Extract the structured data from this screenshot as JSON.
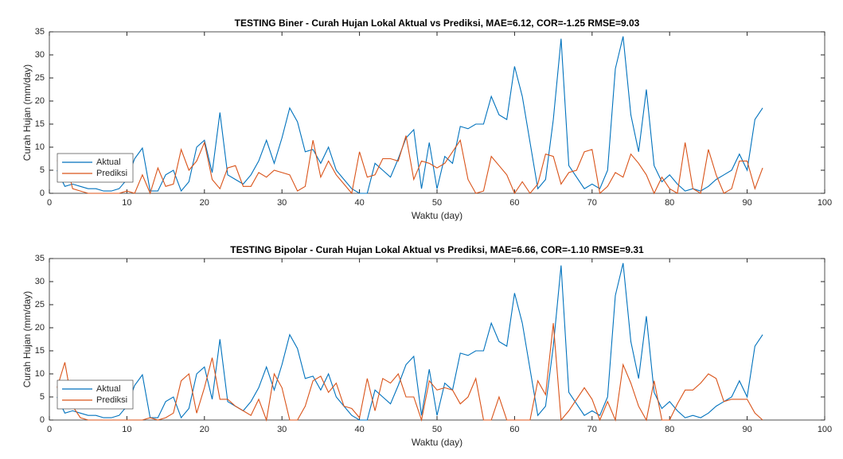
{
  "chart_data": [
    {
      "type": "line",
      "title": "TESTING Biner - Curah Hujan Lokal Aktual vs Prediksi, MAE=6.12, COR=-1.25 RMSE=9.03",
      "xlabel": "Waktu (day)",
      "ylabel": "Curah Hujan (mm/day)",
      "xlim": [
        0,
        100
      ],
      "xticks": [
        0,
        10,
        20,
        30,
        40,
        50,
        60,
        70,
        80,
        90,
        100
      ],
      "ylim": [
        0,
        35
      ],
      "yticks": [
        0,
        5,
        10,
        15,
        20,
        25,
        30,
        35
      ],
      "legend": "lower left",
      "x": [
        1,
        2,
        3,
        4,
        5,
        6,
        7,
        8,
        9,
        10,
        11,
        12,
        13,
        14,
        15,
        16,
        17,
        18,
        19,
        20,
        21,
        22,
        23,
        24,
        25,
        26,
        27,
        28,
        29,
        30,
        31,
        32,
        33,
        34,
        35,
        36,
        37,
        38,
        39,
        40,
        41,
        42,
        43,
        44,
        45,
        46,
        47,
        48,
        49,
        50,
        51,
        52,
        53,
        54,
        55,
        56,
        57,
        58,
        59,
        60,
        61,
        62,
        63,
        64,
        65,
        66,
        67,
        68,
        69,
        70,
        71,
        72,
        73,
        74,
        75,
        76,
        77,
        78,
        79,
        80,
        81,
        82,
        83,
        84,
        85,
        86,
        87,
        88,
        89,
        90,
        91,
        92
      ],
      "series": [
        {
          "name": "Aktual",
          "color": "#0072BD",
          "values": [
            5,
            1.5,
            2,
            1.5,
            1,
            1,
            0.5,
            0.5,
            1,
            3,
            7.5,
            9.8,
            0.5,
            0.5,
            4,
            5,
            0.5,
            2.5,
            10,
            11.5,
            4.5,
            17.5,
            4,
            3,
            2,
            4,
            7,
            11.5,
            6.5,
            12,
            18.5,
            15.5,
            9,
            9.5,
            6.5,
            10,
            5,
            3,
            1,
            0,
            0,
            6.5,
            5,
            3.5,
            7.5,
            12,
            13.8,
            1,
            11,
            1,
            8,
            6.5,
            14.5,
            14,
            15,
            15,
            21,
            17,
            16,
            27.5,
            21,
            11,
            1,
            3,
            16,
            33.5,
            6,
            3.5,
            1,
            2,
            1,
            5,
            27,
            34,
            17,
            9,
            22.5,
            6,
            2.5,
            4,
            2,
            0.5,
            1,
            0.5,
            1.5,
            3,
            4,
            5,
            8.5,
            5,
            16,
            18.5
          ]
        },
        {
          "name": "Prediksi",
          "color": "#D95319",
          "values": [
            7,
            8,
            1,
            0.5,
            0,
            0,
            0,
            0,
            0,
            0.5,
            0,
            4,
            0,
            5.5,
            1.5,
            2,
            9.5,
            5,
            7,
            11,
            3,
            1,
            5.5,
            6,
            1.5,
            1.5,
            4.5,
            3.5,
            5,
            4.5,
            4,
            0.5,
            1.5,
            11.5,
            3.5,
            7,
            4,
            2,
            0,
            9,
            3.5,
            4,
            7.5,
            7.5,
            7,
            12.5,
            3,
            7,
            6.5,
            5.5,
            6.5,
            9,
            11.5,
            3,
            0,
            0.5,
            8,
            6,
            4,
            0,
            2.5,
            0,
            2,
            8.5,
            8,
            2,
            4.5,
            5,
            9,
            9.5,
            0,
            1.5,
            4.5,
            3.5,
            8.5,
            6.5,
            4,
            0,
            3.5,
            1,
            0,
            11,
            1,
            0,
            9.5,
            4,
            0,
            1,
            7,
            7,
            1,
            5.5
          ]
        }
      ]
    },
    {
      "type": "line",
      "title": "TESTING Bipolar - Curah Hujan Lokal Aktual vs Prediksi, MAE=6.66, COR=-1.10 RMSE=9.31",
      "xlabel": "Waktu (day)",
      "ylabel": "Curah Hujan (mm/day)",
      "xlim": [
        0,
        100
      ],
      "xticks": [
        0,
        10,
        20,
        30,
        40,
        50,
        60,
        70,
        80,
        90,
        100
      ],
      "ylim": [
        0,
        35
      ],
      "yticks": [
        0,
        5,
        10,
        15,
        20,
        25,
        30,
        35
      ],
      "legend": "lower left",
      "x": [
        1,
        2,
        3,
        4,
        5,
        6,
        7,
        8,
        9,
        10,
        11,
        12,
        13,
        14,
        15,
        16,
        17,
        18,
        19,
        20,
        21,
        22,
        23,
        24,
        25,
        26,
        27,
        28,
        29,
        30,
        31,
        32,
        33,
        34,
        35,
        36,
        37,
        38,
        39,
        40,
        41,
        42,
        43,
        44,
        45,
        46,
        47,
        48,
        49,
        50,
        51,
        52,
        53,
        54,
        55,
        56,
        57,
        58,
        59,
        60,
        61,
        62,
        63,
        64,
        65,
        66,
        67,
        68,
        69,
        70,
        71,
        72,
        73,
        74,
        75,
        76,
        77,
        78,
        79,
        80,
        81,
        82,
        83,
        84,
        85,
        86,
        87,
        88,
        89,
        90,
        91,
        92
      ],
      "series": [
        {
          "name": "Aktual",
          "color": "#0072BD",
          "values": [
            5,
            1.5,
            2,
            1.5,
            1,
            1,
            0.5,
            0.5,
            1,
            3,
            7.5,
            9.8,
            0.5,
            0.5,
            4,
            5,
            0.5,
            2.5,
            10,
            11.5,
            4.5,
            17.5,
            4,
            3,
            2,
            4,
            7,
            11.5,
            6.5,
            12,
            18.5,
            15.5,
            9,
            9.5,
            6.5,
            10,
            5,
            3,
            1,
            0,
            0,
            6.5,
            5,
            3.5,
            7.5,
            12,
            13.8,
            1,
            11,
            1,
            8,
            6.5,
            14.5,
            14,
            15,
            15,
            21,
            17,
            16,
            27.5,
            21,
            11,
            1,
            3,
            16,
            33.5,
            6,
            3.5,
            1,
            2,
            1,
            5,
            27,
            34,
            17,
            9,
            22.5,
            6,
            2.5,
            4,
            2,
            0.5,
            1,
            0.5,
            1.5,
            3,
            4,
            5,
            8.5,
            5,
            16,
            18.5
          ]
        },
        {
          "name": "Prediksi",
          "color": "#D95319",
          "values": [
            7,
            12.5,
            3,
            0.5,
            0,
            0,
            0,
            0,
            0,
            0,
            0,
            0,
            0.5,
            0,
            0.5,
            1.5,
            8.5,
            10,
            1.5,
            7,
            13.5,
            4.5,
            4.5,
            3,
            2,
            1,
            4.5,
            0,
            10,
            7,
            0,
            0,
            3,
            8.5,
            9.5,
            6,
            8,
            3,
            2.5,
            0.5,
            9,
            2,
            9,
            8,
            10,
            5,
            5,
            0,
            8.5,
            6.5,
            7,
            6.5,
            3.5,
            5,
            9,
            0,
            0,
            5,
            0,
            0,
            0,
            0,
            8.5,
            5.5,
            21,
            0,
            2,
            4.5,
            7,
            4.5,
            0,
            4,
            0,
            12,
            8,
            3,
            0,
            8.5,
            0,
            0,
            3.5,
            6.5,
            6.5,
            8,
            10,
            9,
            4,
            4.5,
            4.5,
            4.5,
            1.5,
            0
          ]
        }
      ]
    }
  ]
}
